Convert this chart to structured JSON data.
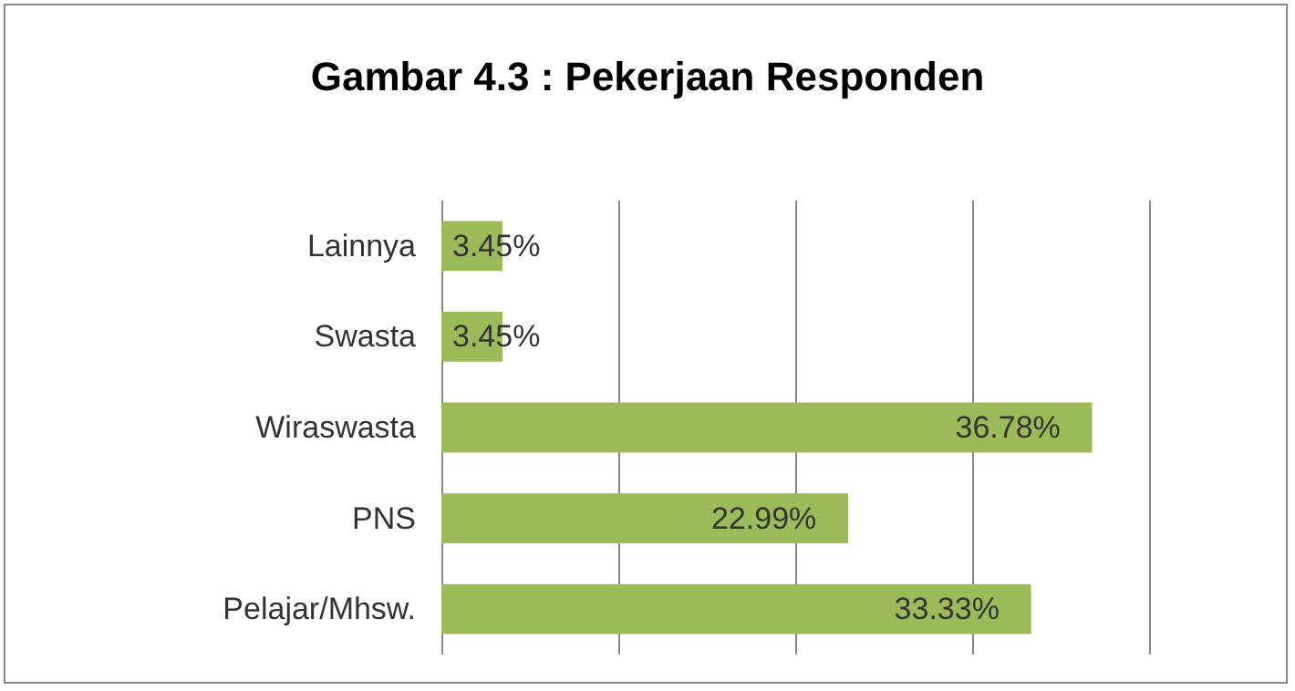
{
  "chart_data": {
    "type": "bar",
    "orientation": "horizontal",
    "title": "Gambar 4.3 : Pekerjaan Responden",
    "categories": [
      "Lainnya",
      "Swasta",
      "Wiraswasta",
      "PNS",
      "Pelajar/Mhsw."
    ],
    "values": [
      3.45,
      3.45,
      36.78,
      22.99,
      33.33
    ],
    "value_labels": [
      "3.45%",
      "3.45%",
      "36.78%",
      "22.99%",
      "33.33%"
    ],
    "color": "#9bbb59",
    "xlim": [
      0,
      40
    ],
    "xticks": [
      {
        "value": 0,
        "label": null
      },
      {
        "value": 10,
        "label": null
      },
      {
        "value": 20,
        "label": null
      },
      {
        "value": 30,
        "label": null
      },
      {
        "value": 40,
        "label": null
      }
    ],
    "grid": "x",
    "tick_labels": "y"
  }
}
